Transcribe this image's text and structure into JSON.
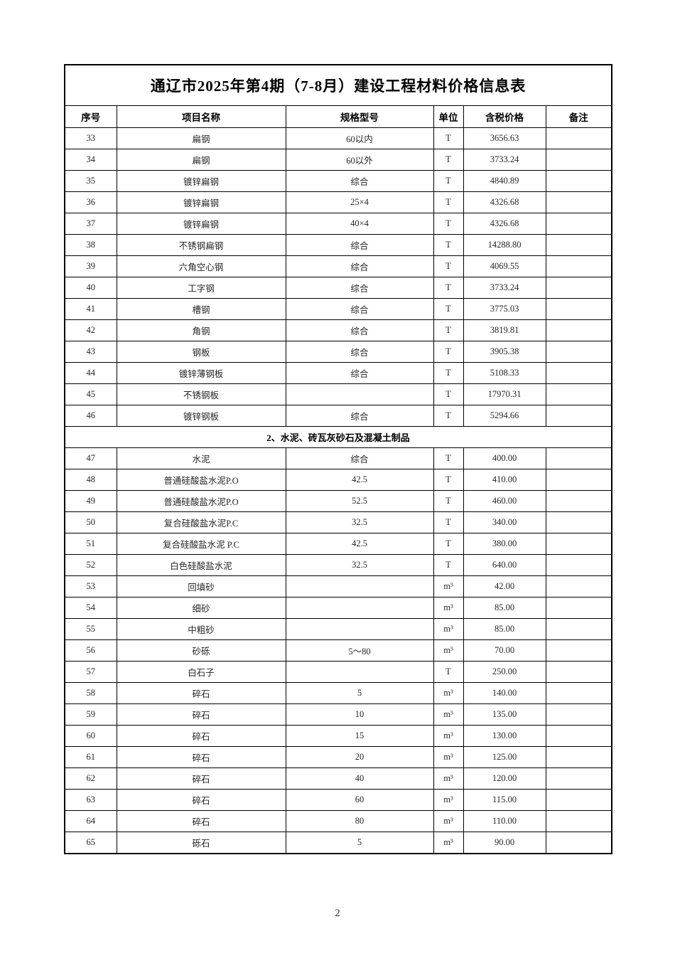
{
  "page": {
    "number": "2"
  },
  "colors": {
    "border": "#000000",
    "text": "#262626",
    "background": "#ffffff"
  },
  "table": {
    "title": "通辽市2025年第4期（7-8月）建设工程材料价格信息表",
    "columns": [
      "序号",
      "项目名称",
      "规格型号",
      "单位",
      "含税价格",
      "备注"
    ],
    "rows": [
      {
        "type": "item",
        "no": "33",
        "name": "扁钢",
        "spec": "60以内",
        "unit": "T",
        "price": "3656.63",
        "note": ""
      },
      {
        "type": "item",
        "no": "34",
        "name": "扁钢",
        "spec": "60以外",
        "unit": "T",
        "price": "3733.24",
        "note": ""
      },
      {
        "type": "item",
        "no": "35",
        "name": "镀锌扁钢",
        "spec": "综合",
        "unit": "T",
        "price": "4840.89",
        "note": ""
      },
      {
        "type": "item",
        "no": "36",
        "name": "镀锌扁钢",
        "spec": "25×4",
        "unit": "T",
        "price": "4326.68",
        "note": ""
      },
      {
        "type": "item",
        "no": "37",
        "name": "镀锌扁钢",
        "spec": "40×4",
        "unit": "T",
        "price": "4326.68",
        "note": ""
      },
      {
        "type": "item",
        "no": "38",
        "name": "不锈钢扁钢",
        "spec": "综合",
        "unit": "T",
        "price": "14288.80",
        "note": ""
      },
      {
        "type": "item",
        "no": "39",
        "name": "六角空心钢",
        "spec": "综合",
        "unit": "T",
        "price": "4069.55",
        "note": ""
      },
      {
        "type": "item",
        "no": "40",
        "name": "工字钢",
        "spec": "综合",
        "unit": "T",
        "price": "3733.24",
        "note": ""
      },
      {
        "type": "item",
        "no": "41",
        "name": "槽钢",
        "spec": "综合",
        "unit": "T",
        "price": "3775.03",
        "note": ""
      },
      {
        "type": "item",
        "no": "42",
        "name": "角钢",
        "spec": "综合",
        "unit": "T",
        "price": "3819.81",
        "note": ""
      },
      {
        "type": "item",
        "no": "43",
        "name": "钢板",
        "spec": "综合",
        "unit": "T",
        "price": "3905.38",
        "note": ""
      },
      {
        "type": "item",
        "no": "44",
        "name": "镀锌薄钢板",
        "spec": "综合",
        "unit": "T",
        "price": "5108.33",
        "note": ""
      },
      {
        "type": "item",
        "no": "45",
        "name": "不锈钢板",
        "spec": "",
        "unit": "T",
        "price": "17970.31",
        "note": ""
      },
      {
        "type": "item",
        "no": "46",
        "name": "镀锌钢板",
        "spec": "综合",
        "unit": "T",
        "price": "5294.66",
        "note": ""
      },
      {
        "type": "section",
        "label": "2、水泥、砖瓦灰砂石及混凝土制品"
      },
      {
        "type": "item",
        "no": "47",
        "name": "水泥",
        "spec": "综合",
        "unit": "T",
        "price": "400.00",
        "note": ""
      },
      {
        "type": "item",
        "no": "48",
        "name": "普通硅酸盐水泥P.O",
        "spec": "42.5",
        "unit": "T",
        "price": "410.00",
        "note": ""
      },
      {
        "type": "item",
        "no": "49",
        "name": "普通硅酸盐水泥P.O",
        "spec": "52.5",
        "unit": "T",
        "price": "460.00",
        "note": ""
      },
      {
        "type": "item",
        "no": "50",
        "name": "复合硅酸盐水泥P.C",
        "spec": "32.5",
        "unit": "T",
        "price": "340.00",
        "note": ""
      },
      {
        "type": "item",
        "no": "51",
        "name": "复合硅酸盐水泥 P.C",
        "spec": "42.5",
        "unit": "T",
        "price": "380.00",
        "note": ""
      },
      {
        "type": "item",
        "no": "52",
        "name": "白色硅酸盐水泥",
        "spec": "32.5",
        "unit": "T",
        "price": "640.00",
        "note": ""
      },
      {
        "type": "item",
        "no": "53",
        "name": "回填砂",
        "spec": "",
        "unit": "m³",
        "price": "42.00",
        "note": ""
      },
      {
        "type": "item",
        "no": "54",
        "name": "细砂",
        "spec": "",
        "unit": "m³",
        "price": "85.00",
        "note": ""
      },
      {
        "type": "item",
        "no": "55",
        "name": "中粗砂",
        "spec": "",
        "unit": "m³",
        "price": "85.00",
        "note": ""
      },
      {
        "type": "item",
        "no": "56",
        "name": "砂砾",
        "spec": "5～80",
        "unit": "m³",
        "price": "70.00",
        "note": ""
      },
      {
        "type": "item",
        "no": "57",
        "name": "白石子",
        "spec": "",
        "unit": "T",
        "price": "250.00",
        "note": ""
      },
      {
        "type": "item",
        "no": "58",
        "name": "碎石",
        "spec": "5",
        "unit": "m³",
        "price": "140.00",
        "note": ""
      },
      {
        "type": "item",
        "no": "59",
        "name": "碎石",
        "spec": "10",
        "unit": "m³",
        "price": "135.00",
        "note": ""
      },
      {
        "type": "item",
        "no": "60",
        "name": "碎石",
        "spec": "15",
        "unit": "m³",
        "price": "130.00",
        "note": ""
      },
      {
        "type": "item",
        "no": "61",
        "name": "碎石",
        "spec": "20",
        "unit": "m³",
        "price": "125.00",
        "note": ""
      },
      {
        "type": "item",
        "no": "62",
        "name": "碎石",
        "spec": "40",
        "unit": "m³",
        "price": "120.00",
        "note": ""
      },
      {
        "type": "item",
        "no": "63",
        "name": "碎石",
        "spec": "60",
        "unit": "m³",
        "price": "115.00",
        "note": ""
      },
      {
        "type": "item",
        "no": "64",
        "name": "碎石",
        "spec": "80",
        "unit": "m³",
        "price": "110.00",
        "note": ""
      },
      {
        "type": "item",
        "no": "65",
        "name": "砾石",
        "spec": "5",
        "unit": "m³",
        "price": "90.00",
        "note": ""
      }
    ]
  }
}
